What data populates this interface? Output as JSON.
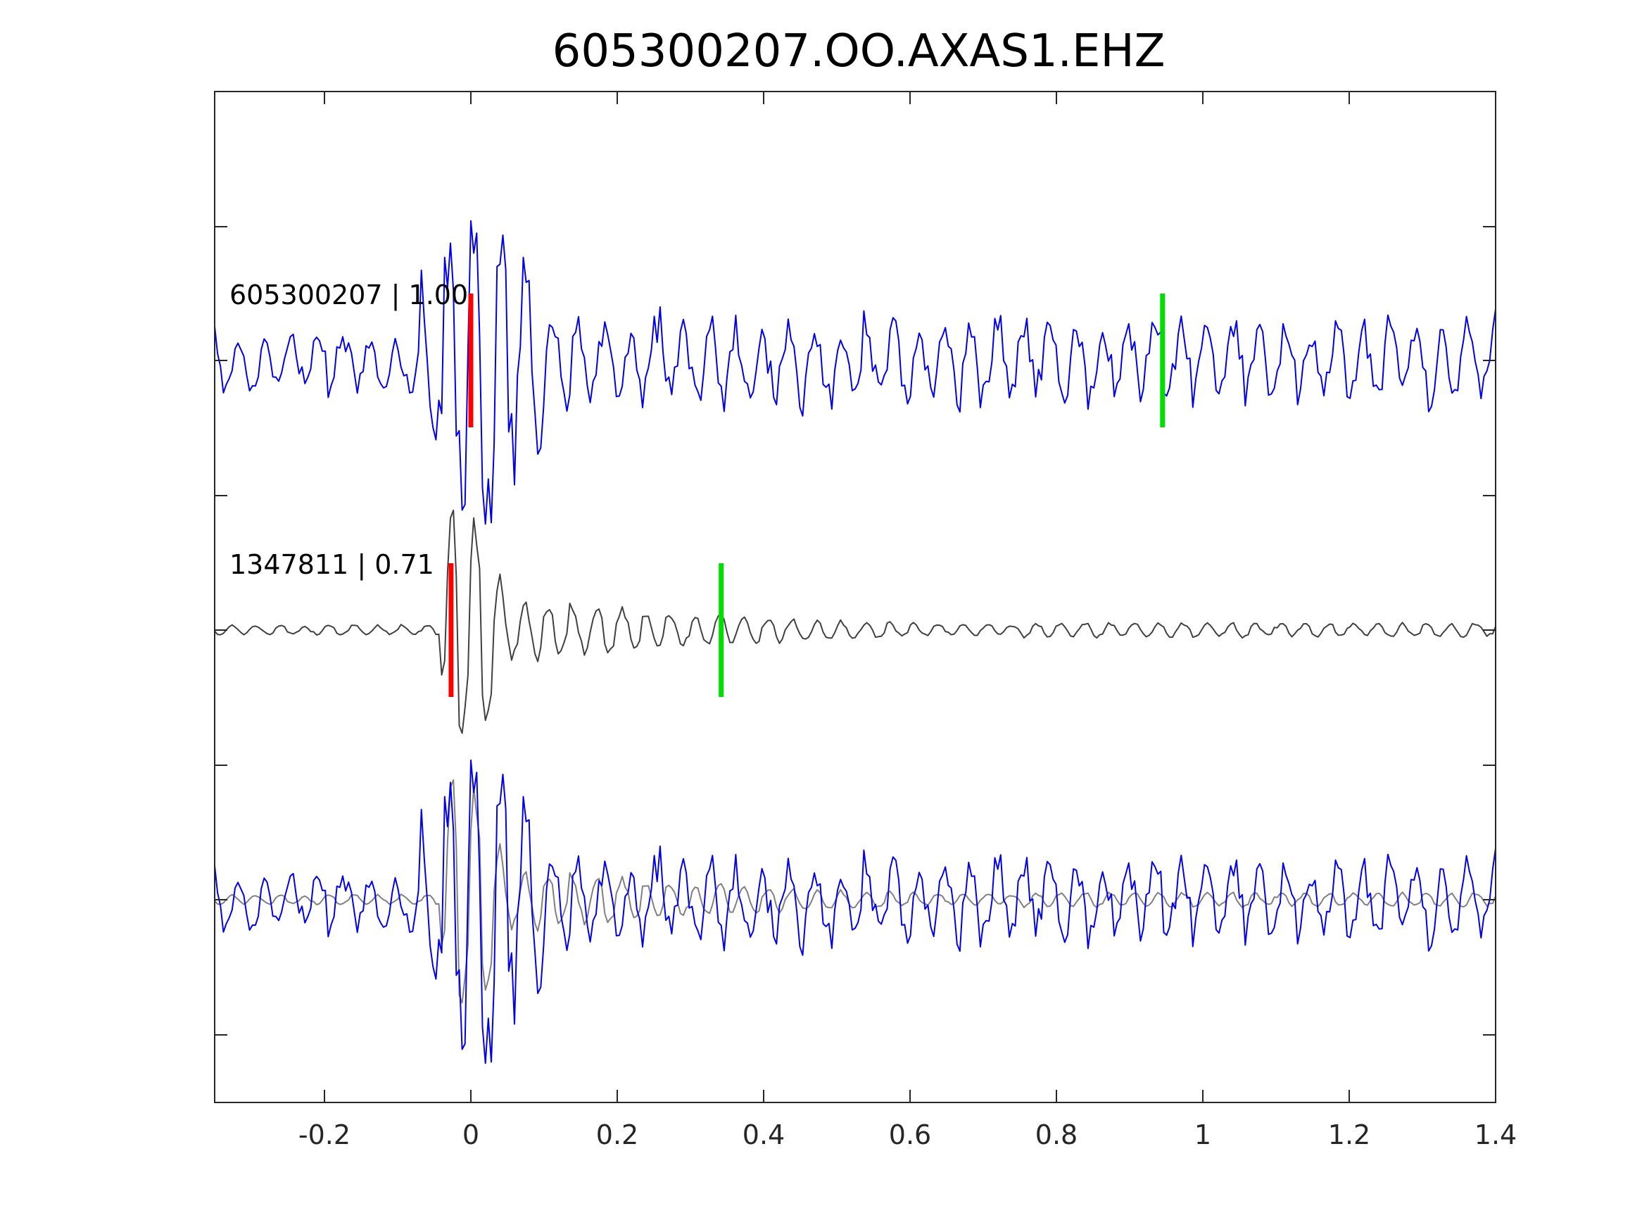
{
  "chart_data": {
    "type": "line",
    "title": "605300207.OO.AXAS1.EHZ",
    "xlabel": "",
    "ylabel": "",
    "xlim": [
      -0.35,
      1.4
    ],
    "x_ticks": [
      -0.2,
      0,
      0.2,
      0.4,
      0.6,
      0.8,
      1,
      1.2,
      1.4
    ],
    "x_tick_labels": [
      "-0.2",
      "0",
      "0.2",
      "0.4",
      "0.6",
      "0.8",
      "1",
      "1.2",
      "1.4"
    ],
    "y_tick_labels_shown": false,
    "grid": false,
    "legend": "none",
    "colors": {
      "template": "#0000ee",
      "match": "#404040",
      "match_overlay": "#808080",
      "p_pick": "#ff0000",
      "s_pick": "#00dd00"
    },
    "traces": [
      {
        "label": "605300207 | 1.00",
        "color": "#0000ee",
        "p_pick_time": 0.0,
        "s_pick_time": 0.945
      },
      {
        "label": "1347811 | 0.71",
        "color": "#404040",
        "p_pick_time": -0.027,
        "s_pick_time": 0.342
      }
    ],
    "overlay_panel": {
      "series": [
        "605300207",
        "1347811"
      ]
    }
  }
}
